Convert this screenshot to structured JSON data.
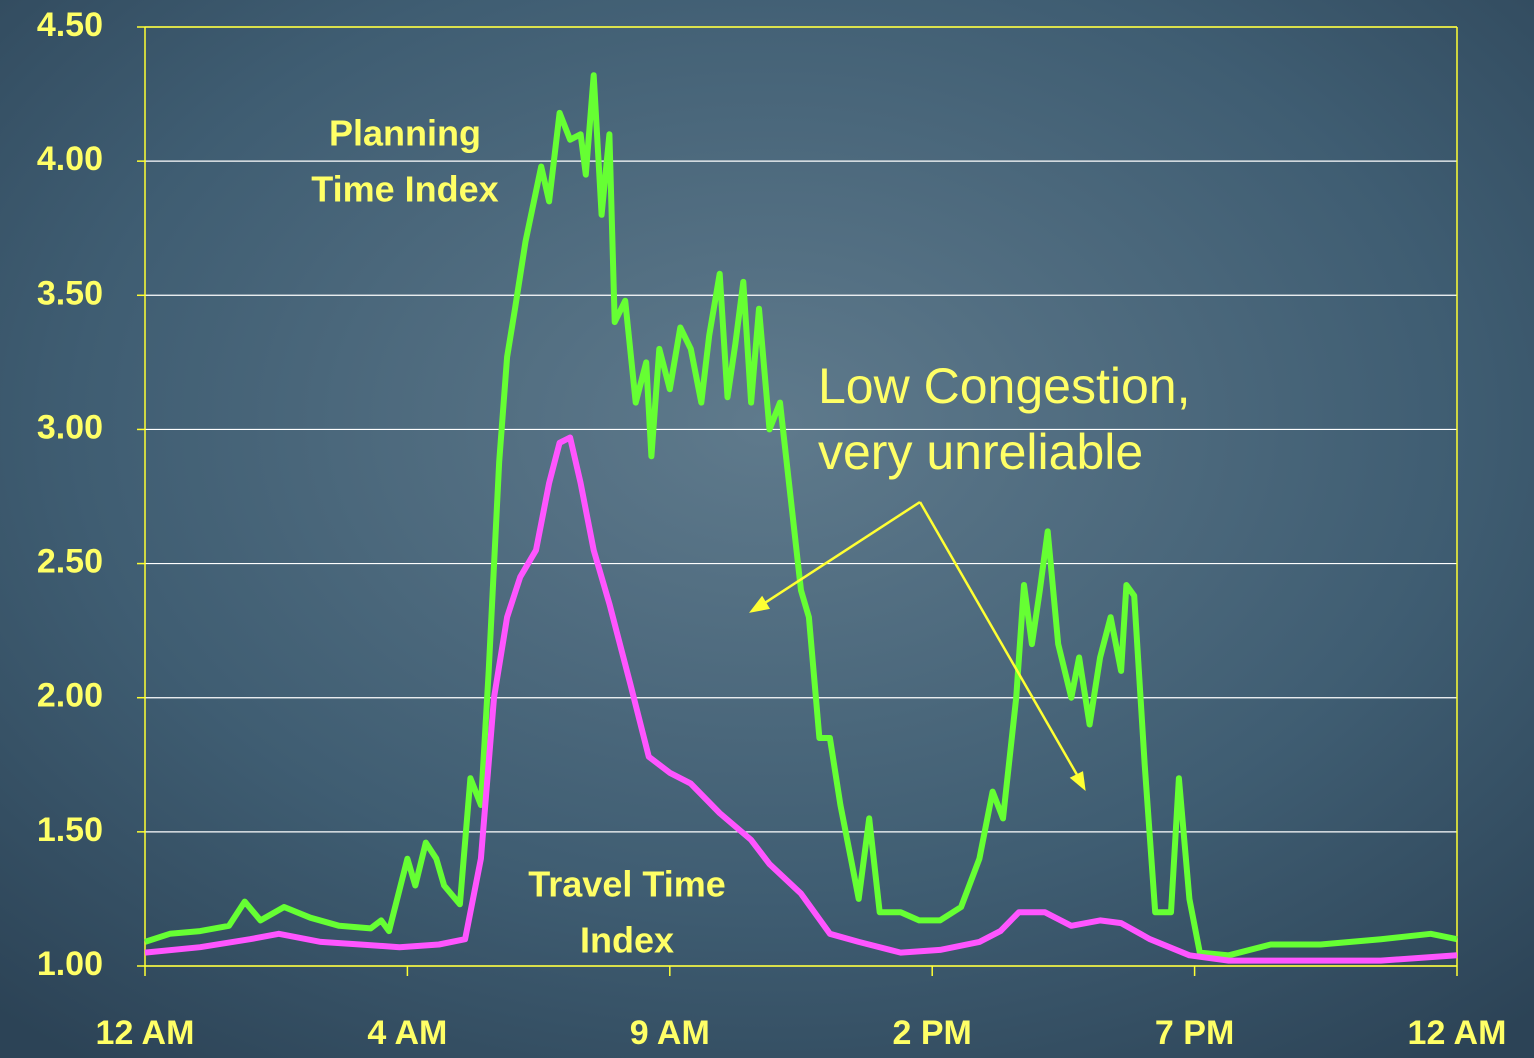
{
  "chart_data": {
    "type": "line",
    "xlim": [
      0,
      500
    ],
    "xticks": [
      {
        "value": 0,
        "label": "12 AM"
      },
      {
        "value": 100,
        "label": "4 AM"
      },
      {
        "value": 200,
        "label": "9 AM"
      },
      {
        "value": 300,
        "label": "2 PM"
      },
      {
        "value": 400,
        "label": "7 PM"
      },
      {
        "value": 500,
        "label": "12 AM"
      }
    ],
    "ylim": [
      1,
      4.5
    ],
    "yticks": [
      {
        "value": 1,
        "label": "1.00"
      },
      {
        "value": 1.5,
        "label": "1.50"
      },
      {
        "value": 2,
        "label": "2.00"
      },
      {
        "value": 2.5,
        "label": "2.50"
      },
      {
        "value": 3,
        "label": "3.00"
      },
      {
        "value": 3.5,
        "label": "3.50"
      },
      {
        "value": 4,
        "label": "4.00"
      },
      {
        "value": 4.5,
        "label": "4.50"
      }
    ],
    "grid": true,
    "series": [
      {
        "name": "Planning Time Index",
        "color": "#66ff33",
        "x": [
          0,
          9.5,
          21,
          32,
          38,
          44,
          53,
          63,
          74,
          86,
          90,
          93,
          100,
          103,
          107,
          111,
          114,
          120,
          124,
          128,
          131,
          135,
          138,
          141,
          145,
          151,
          154,
          158,
          162,
          166,
          168,
          171,
          174,
          177,
          179,
          183,
          187,
          191,
          193,
          196,
          200,
          204,
          208,
          212,
          215,
          219,
          222,
          225,
          228,
          231,
          234,
          238,
          242,
          246,
          250,
          253,
          257,
          261,
          265,
          269,
          272,
          276,
          280,
          288,
          295,
          303,
          311,
          318,
          323,
          327,
          332,
          335,
          338,
          341,
          344,
          348,
          353,
          356,
          360,
          364,
          368,
          372,
          374,
          377,
          381,
          385,
          391,
          394,
          398,
          402,
          413,
          429,
          448,
          471,
          490,
          500
        ],
        "values": [
          1.09,
          1.12,
          1.13,
          1.15,
          1.24,
          1.17,
          1.22,
          1.18,
          1.15,
          1.14,
          1.17,
          1.13,
          1.4,
          1.3,
          1.46,
          1.4,
          1.3,
          1.23,
          1.7,
          1.6,
          2.1,
          2.88,
          3.27,
          3.45,
          3.7,
          3.98,
          3.85,
          4.18,
          4.08,
          4.1,
          3.95,
          4.32,
          3.8,
          4.1,
          3.4,
          3.48,
          3.1,
          3.25,
          2.9,
          3.3,
          3.15,
          3.38,
          3.3,
          3.1,
          3.35,
          3.58,
          3.12,
          3.32,
          3.55,
          3.1,
          3.45,
          3.0,
          3.1,
          2.75,
          2.4,
          2.3,
          1.85,
          1.85,
          1.6,
          1.4,
          1.25,
          1.55,
          1.2,
          1.2,
          1.17,
          1.17,
          1.22,
          1.4,
          1.65,
          1.55,
          2.0,
          2.42,
          2.2,
          2.4,
          2.62,
          2.2,
          2.0,
          2.15,
          1.9,
          2.15,
          2.3,
          2.1,
          2.42,
          2.38,
          1.75,
          1.2,
          1.2,
          1.7,
          1.25,
          1.05,
          1.04,
          1.08,
          1.08,
          1.1,
          1.12,
          1.1
        ]
      },
      {
        "name": "Travel Time Index",
        "color": "#ff55ff",
        "x": [
          0,
          21,
          40,
          51,
          67,
          82,
          97,
          112,
          122,
          128,
          133,
          138,
          143,
          149,
          154,
          158,
          162,
          166,
          171,
          177,
          185,
          192,
          200,
          208,
          219,
          231,
          238,
          250,
          261,
          272,
          288,
          303,
          318,
          326,
          333,
          343,
          353,
          364,
          372,
          383,
          398,
          413,
          440,
          471,
          500
        ],
        "values": [
          1.05,
          1.07,
          1.1,
          1.12,
          1.09,
          1.08,
          1.07,
          1.08,
          1.1,
          1.4,
          2.0,
          2.3,
          2.45,
          2.55,
          2.8,
          2.95,
          2.97,
          2.8,
          2.55,
          2.35,
          2.05,
          1.78,
          1.72,
          1.68,
          1.57,
          1.47,
          1.38,
          1.27,
          1.12,
          1.09,
          1.05,
          1.06,
          1.09,
          1.13,
          1.2,
          1.2,
          1.15,
          1.17,
          1.16,
          1.1,
          1.04,
          1.02,
          1.02,
          1.02,
          1.04
        ]
      }
    ],
    "annotations": [
      {
        "lines": [
          "Planning",
          "Time Index"
        ]
      },
      {
        "lines": [
          "Travel Time",
          "Index"
        ]
      },
      {
        "lines": [
          "Low Congestion,",
          "very unreliable"
        ]
      }
    ]
  }
}
